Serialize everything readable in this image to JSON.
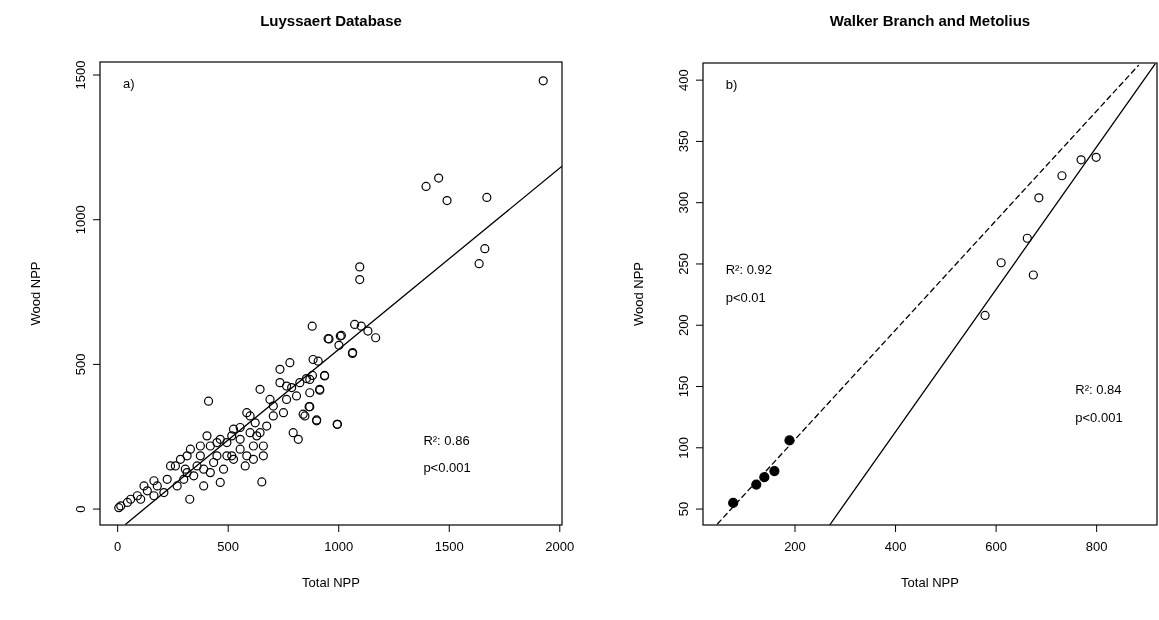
{
  "chart_data": [
    {
      "type": "scatter",
      "title": "Luyssaert Database",
      "xlabel": "Total NPP",
      "ylabel": "Wood NPP",
      "xlim": [
        -80,
        2010
      ],
      "ylim": [
        -55,
        1545
      ],
      "xticks": [
        0,
        500,
        1000,
        1500,
        2000
      ],
      "yticks": [
        0,
        500,
        1000,
        1500
      ],
      "grid": false,
      "annotations": [
        "a)",
        "R²: 0.86",
        "p<0.001"
      ],
      "series": [
        {
          "marker": "circle",
          "color": "#000000",
          "x": [
            1925,
            1395,
            1452,
            1490,
            1670,
            1661,
            1635,
            1095,
            1095,
            880,
            1072,
            1102,
            1132,
            1167,
            956,
            1012,
            1001,
            1062,
            884,
            907,
            936,
            854,
            881,
            914,
            869,
            847,
            900,
            994,
            952,
            1007,
            1063,
            734,
            779,
            936,
            869,
            914,
            734,
            787,
            644,
            411,
            866,
            839,
            900,
            993,
            794,
            817,
            584,
            622,
            704,
            750,
            674,
            524,
            599,
            554,
            659,
            652,
            614,
            494,
            404,
            374,
            329,
            449,
            524,
            284,
            239,
            419,
            464,
            389,
            326,
            314,
            224,
            179,
            134,
            89,
            14,
            5,
            44,
            209,
            269,
            299,
            359,
            374,
            434,
            494,
            554,
            584,
            659,
            629,
            599,
            689,
            704,
            764,
            809,
            869,
            764,
            824,
            516,
            464,
            419,
            314,
            261,
            344,
            164,
            119,
            59,
            104,
            164,
            449,
            554,
            644,
            614,
            516,
            577,
            479,
            389,
            306
          ],
          "values": [
            1480,
            1115,
            1144,
            1066,
            1077,
            900,
            848,
            837,
            793,
            632,
            638,
            632,
            615,
            592,
            588,
            600,
            566,
            538,
            517,
            511,
            462,
            451,
            462,
            411,
            354,
            322,
            308,
            293,
            589,
            598,
            541,
            483,
            506,
            460,
            448,
            414,
            437,
            420,
            414,
            373,
            354,
            328,
            305,
            293,
            264,
            241,
            333,
            298,
            322,
            333,
            287,
            276,
            264,
            241,
            184,
            94,
            172,
            230,
            253,
            218,
            207,
            184,
            172,
            172,
            149,
            126,
            92,
            80,
            34,
            126,
            103,
            80,
            63,
            46,
            11,
            5,
            23,
            57,
            80,
            103,
            149,
            184,
            161,
            184,
            207,
            184,
            218,
            253,
            322,
            379,
            356,
            379,
            391,
            402,
            425,
            437,
            253,
            241,
            218,
            184,
            149,
            115,
            98,
            80,
            34,
            34,
            46,
            230,
            282,
            264,
            218,
            184,
            149,
            138,
            138,
            138
          ]
        },
        {
          "type": "line",
          "color": "#000000",
          "line_style": "solid",
          "x": [
            36,
            2010
          ],
          "values": [
            -52,
            1185
          ]
        }
      ]
    },
    {
      "type": "scatter",
      "title": "Walker Branch and Metolius",
      "xlabel": "Total NPP",
      "ylabel": "Wood NPP",
      "xlim": [
        17,
        920
      ],
      "ylim": [
        37,
        414
      ],
      "xticks": [
        200,
        400,
        600,
        800
      ],
      "yticks": [
        50,
        100,
        150,
        200,
        250,
        300,
        350,
        400
      ],
      "grid": false,
      "annotations": [
        "b)",
        "R²: 0.92",
        "p<0.01",
        "R²: 0.84",
        "p<0.001"
      ],
      "series": [
        {
          "marker": "circle",
          "color": "#000000",
          "x": [
            77,
            123,
            139,
            159,
            189
          ],
          "values": [
            55,
            70,
            76,
            81,
            106
          ]
        },
        {
          "marker": "circle",
          "color": "#000000",
          "x": [
            578,
            610,
            662,
            674,
            685,
            731,
            769,
            799
          ],
          "values": [
            208,
            251,
            271,
            241,
            304,
            322,
            335,
            337
          ]
        },
        {
          "type": "line",
          "color": "#000000",
          "line_style": "dashed",
          "x": [
            46,
            883
          ],
          "values": [
            38,
            412
          ]
        },
        {
          "type": "line",
          "color": "#000000",
          "line_style": "solid",
          "x": [
            269,
            916
          ],
          "values": [
            37,
            413
          ]
        }
      ]
    }
  ]
}
